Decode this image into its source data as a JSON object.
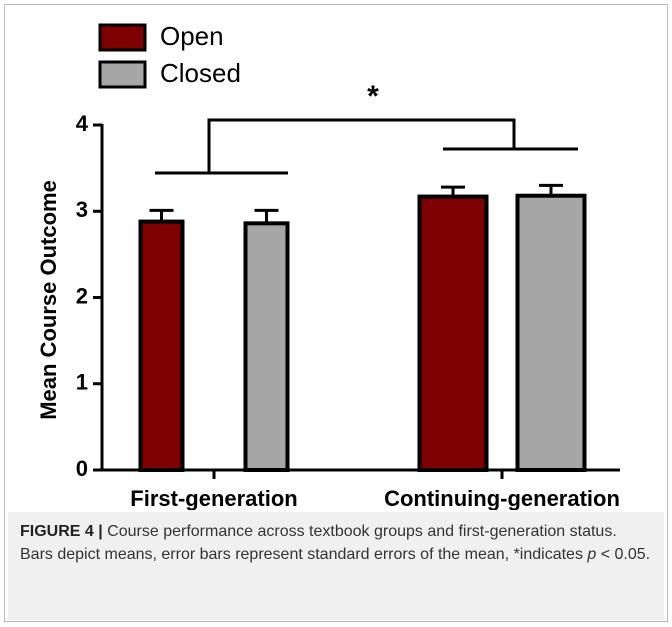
{
  "chart_data": {
    "type": "bar",
    "ylabel": "Mean Course Outcome",
    "categories": [
      "First-generation",
      "Continuing-generation"
    ],
    "series": [
      {
        "name": "Open",
        "color": "#7f0000",
        "values": [
          2.88,
          3.17
        ],
        "errors": [
          0.13,
          0.11
        ]
      },
      {
        "name": "Closed",
        "color": "#a6a6a6",
        "values": [
          2.86,
          3.18
        ],
        "errors": [
          0.15,
          0.12
        ]
      }
    ],
    "ylim": [
      0,
      4
    ],
    "yticks": [
      0,
      1,
      2,
      3,
      4
    ],
    "annotation": "*",
    "caption": {
      "label": "FIGURE 4 |",
      "text": "Course performance across textbook groups and first-generation status. Bars depict means, error bars represent standard errors of the mean, *indicates ",
      "italic": "p",
      "end": " < 0.05."
    }
  }
}
